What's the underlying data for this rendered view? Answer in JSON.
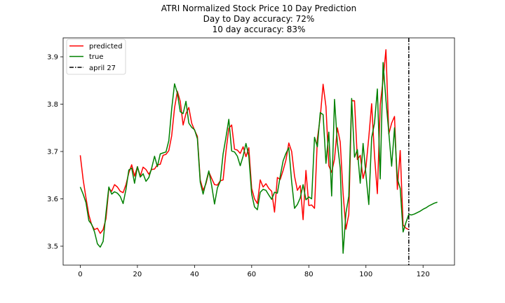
{
  "chart_data": {
    "type": "line",
    "title_lines": [
      "ATRI Normalized Stock Price 10 Day Prediction",
      "Day to Day accuracy: 72%",
      "10 day accuracy: 83%"
    ],
    "xlabel": "",
    "ylabel": "",
    "xlim": [
      -6,
      131
    ],
    "ylim": [
      3.46,
      3.94
    ],
    "x_ticks": [
      0,
      20,
      40,
      60,
      80,
      100,
      120
    ],
    "y_ticks": [
      3.5,
      3.6,
      3.7,
      3.8,
      3.9
    ],
    "legend_position": "upper-left",
    "series": [
      {
        "name": "predicted",
        "color": "#ff0000",
        "x_start": 0,
        "values": [
          3.692,
          3.641,
          3.602,
          3.566,
          3.545,
          3.535,
          3.538,
          3.527,
          3.535,
          3.558,
          3.622,
          3.616,
          3.63,
          3.625,
          3.616,
          3.613,
          3.63,
          3.655,
          3.672,
          3.648,
          3.668,
          3.648,
          3.667,
          3.662,
          3.652,
          3.662,
          3.663,
          3.672,
          3.673,
          3.692,
          3.694,
          3.702,
          3.733,
          3.792,
          3.827,
          3.806,
          3.756,
          3.78,
          3.793,
          3.76,
          3.745,
          3.732,
          3.64,
          3.618,
          3.632,
          3.657,
          3.643,
          3.63,
          3.629,
          3.638,
          3.64,
          3.7,
          3.749,
          3.756,
          3.705,
          3.703,
          3.696,
          3.71,
          3.689,
          3.708,
          3.622,
          3.6,
          3.59,
          3.64,
          3.625,
          3.632,
          3.622,
          3.616,
          3.572,
          3.645,
          3.641,
          3.66,
          3.682,
          3.718,
          3.7,
          3.648,
          3.618,
          3.628,
          3.556,
          3.66,
          3.586,
          3.587,
          3.58,
          3.727,
          3.772,
          3.842,
          3.795,
          3.67,
          3.656,
          3.684,
          3.75,
          3.72,
          3.612,
          3.536,
          3.567,
          3.808,
          3.807,
          3.683,
          3.692,
          3.643,
          3.667,
          3.73,
          3.801,
          3.691,
          3.611,
          3.798,
          3.852,
          3.915,
          3.737,
          3.76,
          3.774,
          3.62,
          3.702,
          3.545,
          3.538,
          3.535
        ]
      },
      {
        "name": "true",
        "color": "#008000",
        "x_start": 0,
        "values": [
          3.625,
          3.61,
          3.592,
          3.554,
          3.546,
          3.53,
          3.505,
          3.498,
          3.51,
          3.57,
          3.625,
          3.61,
          3.615,
          3.612,
          3.605,
          3.59,
          3.62,
          3.661,
          3.665,
          3.633,
          3.668,
          3.646,
          3.653,
          3.637,
          3.645,
          3.665,
          3.69,
          3.668,
          3.695,
          3.697,
          3.699,
          3.723,
          3.79,
          3.843,
          3.823,
          3.784,
          3.78,
          3.806,
          3.76,
          3.751,
          3.746,
          3.727,
          3.635,
          3.61,
          3.635,
          3.659,
          3.628,
          3.589,
          3.623,
          3.637,
          3.695,
          3.73,
          3.768,
          3.701,
          3.699,
          3.69,
          3.67,
          3.69,
          3.717,
          3.69,
          3.61,
          3.583,
          3.577,
          3.614,
          3.62,
          3.618,
          3.608,
          3.599,
          3.614,
          3.612,
          3.648,
          3.68,
          3.696,
          3.708,
          3.636,
          3.58,
          3.588,
          3.602,
          3.63,
          3.598,
          3.604,
          3.6,
          3.73,
          3.71,
          3.782,
          3.778,
          3.675,
          3.741,
          3.606,
          3.81,
          3.718,
          3.665,
          3.485,
          3.57,
          3.606,
          3.812,
          3.688,
          3.704,
          3.633,
          3.717,
          3.651,
          3.588,
          3.729,
          3.76,
          3.832,
          3.642,
          3.888,
          3.809,
          3.74,
          3.669,
          3.75,
          3.642,
          3.622,
          3.53,
          3.55,
          3.567,
          3.566,
          3.568,
          3.571,
          3.574,
          3.578,
          3.581,
          3.585,
          3.588,
          3.591,
          3.593
        ]
      }
    ],
    "vline": {
      "name": "april 27",
      "x": 115,
      "color": "#000000",
      "style": "dash-dot"
    }
  }
}
